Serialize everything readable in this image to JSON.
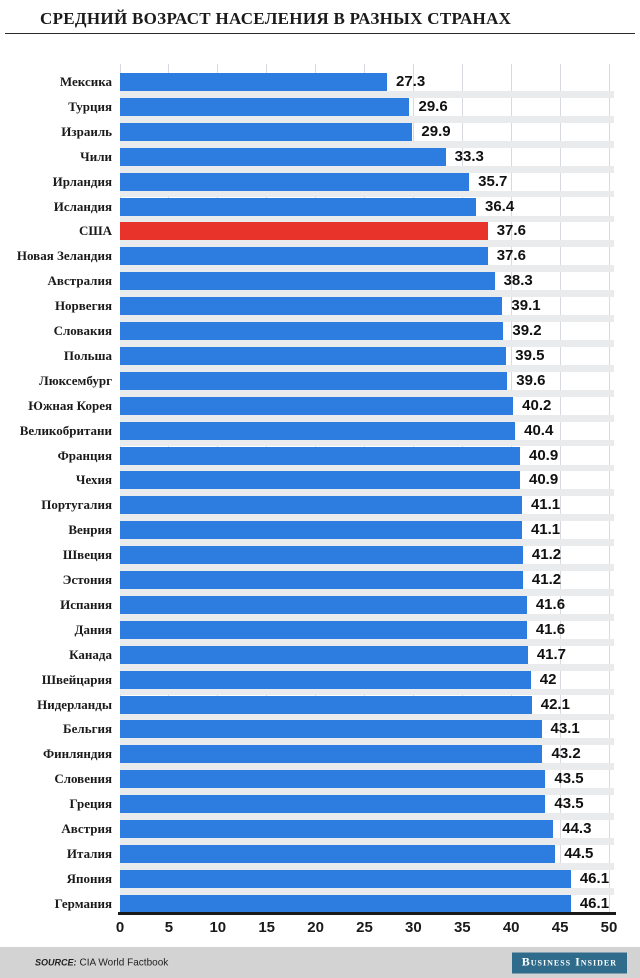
{
  "title": "СРЕДНИЙ ВОЗРАСТ НАСЕЛЕНИЯ В РАЗНЫХ СТРАНАХ",
  "footer": {
    "source_label": "SOURCE:",
    "source_text": "CIA World Factbook",
    "brand": "Business Insider"
  },
  "colors": {
    "bar": "#2d7de1",
    "highlight_bar": "#e8332b",
    "row_band": "#e9ebed",
    "gridline": "#d6d9dd",
    "axis": "#1a1a1a",
    "footer_bg": "#d3d3d3",
    "brand_bg": "#2f6c8c"
  },
  "chart_data": {
    "type": "bar",
    "orientation": "horizontal",
    "title": "СРЕДНИЙ ВОЗРАСТ НАСЕЛЕНИЯ В РАЗНЫХ СТРАНАХ",
    "xlabel": "",
    "ylabel": "",
    "xlim": [
      0,
      50
    ],
    "grid": true,
    "x_ticks": [
      "0",
      "5",
      "10",
      "15",
      "20",
      "25",
      "30",
      "35",
      "40",
      "45",
      "50"
    ],
    "highlight_category": "США",
    "categories": [
      "Мексика",
      "Турция",
      "Израиль",
      "Чили",
      "Ирландия",
      "Исландия",
      "США",
      "Новая Зеландия",
      "Австралия",
      "Норвегия",
      "Словакия",
      "Польша",
      "Люксембург",
      "Южная Корея",
      "Великобритани",
      "Франция",
      "Чехия",
      "Португалия",
      "Венрия",
      "Швеция",
      "Эстония",
      "Испания",
      "Дания",
      "Канада",
      "Швейцария",
      "Нидерланды",
      "Бельгия",
      "Финляндия",
      "Словения",
      "Греция",
      "Австрия",
      "Италия",
      "Япония",
      "Германия"
    ],
    "values": [
      27.3,
      29.6,
      29.9,
      33.3,
      35.7,
      36.4,
      37.6,
      37.6,
      38.3,
      39.1,
      39.2,
      39.5,
      39.6,
      40.2,
      40.4,
      40.9,
      40.9,
      41.1,
      41.1,
      41.2,
      41.2,
      41.6,
      41.6,
      41.7,
      42,
      42.1,
      43.1,
      43.2,
      43.5,
      43.5,
      44.3,
      44.5,
      46.1,
      46.1
    ],
    "value_labels": [
      "27.3",
      "29.6",
      "29.9",
      "33.3",
      "35.7",
      "36.4",
      "37.6",
      "37.6",
      "38.3",
      "39.1",
      "39.2",
      "39.5",
      "39.6",
      "40.2",
      "40.4",
      "40.9",
      "40.9",
      "41.1",
      "41.1",
      "41.2",
      "41.2",
      "41.6",
      "41.6",
      "41.7",
      "42",
      "42.1",
      "43.1",
      "43.2",
      "43.5",
      "43.5",
      "44.3",
      "44.5",
      "46.1",
      "46.1"
    ]
  }
}
